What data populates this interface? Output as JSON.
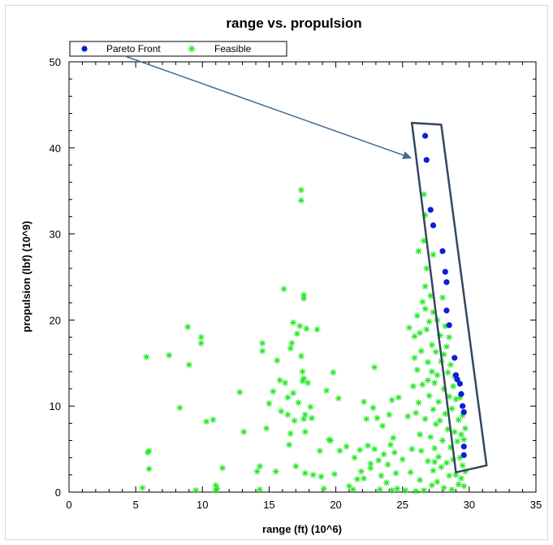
{
  "chart_data": {
    "type": "scatter",
    "title": "range vs. propulsion",
    "xlabel": "range (ft) (10^6)",
    "ylabel": "propulsion (lbf) (10^9)",
    "xlim": [
      0,
      35
    ],
    "ylim": [
      0,
      50
    ],
    "xticks": [
      "0",
      "5",
      "10",
      "15",
      "20",
      "25",
      "30",
      "35"
    ],
    "yticks": [
      "0",
      "10",
      "20",
      "30",
      "40",
      "50"
    ],
    "grid": false,
    "legend": {
      "placement": "top-left",
      "entries": [
        "Pareto Front",
        "Feasible"
      ]
    },
    "colors": {
      "pareto": "#0a1fd6",
      "feasible": "#22e622",
      "annotation": "#3f6b94",
      "box": "#34475e"
    },
    "series": [
      {
        "name": "Pareto Front",
        "marker": "circle",
        "points": [
          [
            26.7,
            41.4
          ],
          [
            26.8,
            38.6
          ],
          [
            27.1,
            32.8
          ],
          [
            27.3,
            31.0
          ],
          [
            28.0,
            28.0
          ],
          [
            28.2,
            25.6
          ],
          [
            28.3,
            24.4
          ],
          [
            28.3,
            21.1
          ],
          [
            28.5,
            19.4
          ],
          [
            28.9,
            15.6
          ],
          [
            29.0,
            13.6
          ],
          [
            29.1,
            13.1
          ],
          [
            29.3,
            12.6
          ],
          [
            29.4,
            11.4
          ],
          [
            29.5,
            10.0
          ],
          [
            29.6,
            9.3
          ],
          [
            29.6,
            5.3
          ],
          [
            29.6,
            4.3
          ]
        ]
      },
      {
        "name": "Feasible",
        "marker": "asterisk",
        "points": [
          [
            5.5,
            0.5
          ],
          [
            5.8,
            15.7
          ],
          [
            5.9,
            4.6
          ],
          [
            6.0,
            4.8
          ],
          [
            6.0,
            2.7
          ],
          [
            7.5,
            15.9
          ],
          [
            8.3,
            9.8
          ],
          [
            8.9,
            19.2
          ],
          [
            9.0,
            14.8
          ],
          [
            9.5,
            0.2
          ],
          [
            9.9,
            18.0
          ],
          [
            9.9,
            17.3
          ],
          [
            10.3,
            8.2
          ],
          [
            10.8,
            8.4
          ],
          [
            11.0,
            0.8
          ],
          [
            11.1,
            0.4
          ],
          [
            11.5,
            2.8
          ],
          [
            11.0,
            0.2
          ],
          [
            12.8,
            11.6
          ],
          [
            13.1,
            7.0
          ],
          [
            14.1,
            2.4
          ],
          [
            14.3,
            3.0
          ],
          [
            14.5,
            17.3
          ],
          [
            14.5,
            16.4
          ],
          [
            14.3,
            0.3
          ],
          [
            14.8,
            7.4
          ],
          [
            15.0,
            10.3
          ],
          [
            15.3,
            11.7
          ],
          [
            15.6,
            15.3
          ],
          [
            15.8,
            13.0
          ],
          [
            15.5,
            2.4
          ],
          [
            15.9,
            9.4
          ],
          [
            16.1,
            23.6
          ],
          [
            16.2,
            12.7
          ],
          [
            16.4,
            11.0
          ],
          [
            16.4,
            9.0
          ],
          [
            16.5,
            5.5
          ],
          [
            16.6,
            6.8
          ],
          [
            16.6,
            16.7
          ],
          [
            16.7,
            17.3
          ],
          [
            16.8,
            19.7
          ],
          [
            16.8,
            11.5
          ],
          [
            16.9,
            8.3
          ],
          [
            17.0,
            3.0
          ],
          [
            17.1,
            18.4
          ],
          [
            17.2,
            10.4
          ],
          [
            17.3,
            19.3
          ],
          [
            17.4,
            35.1
          ],
          [
            17.4,
            33.9
          ],
          [
            17.4,
            15.8
          ],
          [
            17.5,
            14.0
          ],
          [
            17.5,
            12.9
          ],
          [
            17.6,
            22.9
          ],
          [
            17.6,
            22.5
          ],
          [
            17.6,
            13.2
          ],
          [
            17.6,
            8.5
          ],
          [
            17.7,
            9.0
          ],
          [
            17.7,
            7.0
          ],
          [
            17.7,
            2.2
          ],
          [
            17.8,
            19.0
          ],
          [
            17.9,
            12.7
          ],
          [
            18.1,
            9.9
          ],
          [
            18.2,
            8.6
          ],
          [
            18.3,
            2.0
          ],
          [
            18.6,
            18.9
          ],
          [
            18.8,
            4.8
          ],
          [
            18.9,
            1.8
          ],
          [
            19.1,
            0.4
          ],
          [
            19.3,
            11.8
          ],
          [
            19.5,
            6.1
          ],
          [
            19.6,
            6.0
          ],
          [
            19.8,
            13.9
          ],
          [
            19.9,
            2.1
          ],
          [
            20.2,
            10.9
          ],
          [
            20.3,
            4.8
          ],
          [
            20.8,
            5.3
          ],
          [
            21.0,
            0.7
          ],
          [
            21.3,
            0.3
          ],
          [
            21.4,
            4.0
          ],
          [
            21.6,
            1.5
          ],
          [
            21.8,
            4.9
          ],
          [
            21.9,
            2.4
          ],
          [
            22.1,
            1.6
          ],
          [
            22.1,
            10.5
          ],
          [
            22.3,
            8.5
          ],
          [
            22.4,
            5.4
          ],
          [
            22.6,
            2.8
          ],
          [
            22.6,
            3.3
          ],
          [
            22.8,
            9.8
          ],
          [
            22.9,
            14.5
          ],
          [
            22.9,
            5.0
          ],
          [
            23.1,
            8.6
          ],
          [
            23.2,
            3.7
          ],
          [
            23.3,
            0.3
          ],
          [
            23.4,
            1.9
          ],
          [
            23.5,
            7.7
          ],
          [
            23.6,
            4.4
          ],
          [
            23.8,
            1.1
          ],
          [
            23.9,
            3.2
          ],
          [
            24.0,
            9.0
          ],
          [
            24.1,
            5.5
          ],
          [
            24.2,
            0.2
          ],
          [
            24.2,
            10.7
          ],
          [
            24.3,
            6.3
          ],
          [
            24.4,
            4.6
          ],
          [
            24.5,
            2.2
          ],
          [
            24.7,
            11.0
          ],
          [
            24.6,
            0.4
          ],
          [
            25.0,
            3.8
          ],
          [
            25.2,
            0.2
          ],
          [
            25.5,
            19.1
          ],
          [
            25.4,
            8.8
          ],
          [
            25.6,
            2.3
          ],
          [
            26.0,
            0.1
          ],
          [
            25.8,
            12.3
          ],
          [
            25.9,
            18.1
          ],
          [
            26.1,
            20.5
          ],
          [
            26.1,
            14.2
          ],
          [
            26.2,
            10.4
          ],
          [
            26.3,
            6.7
          ],
          [
            26.3,
            1.4
          ],
          [
            26.4,
            16.4
          ],
          [
            26.5,
            22.1
          ],
          [
            26.5,
            12.5
          ],
          [
            26.6,
            34.6
          ],
          [
            26.6,
            29.2
          ],
          [
            26.7,
            23.9
          ],
          [
            26.7,
            21.3
          ],
          [
            26.7,
            8.5
          ],
          [
            26.8,
            18.9
          ],
          [
            26.8,
            26.0
          ],
          [
            26.9,
            15.1
          ],
          [
            26.9,
            3.6
          ],
          [
            27.0,
            19.8
          ],
          [
            27.0,
            11.2
          ],
          [
            27.1,
            22.8
          ],
          [
            27.1,
            6.4
          ],
          [
            27.2,
            17.1
          ],
          [
            27.2,
            14.0
          ],
          [
            27.2,
            0.8
          ],
          [
            27.3,
            20.9
          ],
          [
            27.3,
            9.6
          ],
          [
            27.3,
            2.5
          ],
          [
            27.4,
            12.7
          ],
          [
            27.4,
            5.1
          ],
          [
            27.5,
            16.3
          ],
          [
            27.5,
            7.9
          ],
          [
            27.6,
            13.6
          ],
          [
            27.6,
            1.2
          ],
          [
            27.7,
            10.5
          ],
          [
            27.7,
            4.1
          ],
          [
            27.8,
            18.2
          ],
          [
            27.8,
            8.3
          ],
          [
            27.9,
            15.2
          ],
          [
            27.9,
            2.9
          ],
          [
            28.0,
            22.6
          ],
          [
            28.0,
            6.0
          ],
          [
            28.1,
            12.0
          ],
          [
            28.1,
            0.5
          ],
          [
            28.2,
            19.3
          ],
          [
            28.2,
            9.1
          ],
          [
            28.3,
            16.9
          ],
          [
            28.3,
            3.4
          ],
          [
            28.4,
            13.9
          ],
          [
            28.4,
            7.3
          ],
          [
            28.5,
            11.1
          ],
          [
            28.5,
            1.9
          ],
          [
            28.6,
            5.2
          ],
          [
            28.6,
            14.8
          ],
          [
            28.7,
            9.7
          ],
          [
            28.7,
            0.3
          ],
          [
            28.8,
            12.3
          ],
          [
            28.8,
            3.8
          ],
          [
            28.9,
            7.0
          ],
          [
            29.0,
            10.8
          ],
          [
            29.0,
            2.0
          ],
          [
            29.1,
            5.9
          ],
          [
            29.2,
            8.4
          ],
          [
            29.2,
            0.9
          ],
          [
            29.3,
            11.0
          ],
          [
            29.3,
            4.0
          ],
          [
            29.4,
            6.7
          ],
          [
            29.4,
            1.6
          ],
          [
            29.5,
            8.9
          ],
          [
            29.5,
            3.1
          ],
          [
            29.6,
            6.1
          ],
          [
            29.6,
            0.7
          ],
          [
            29.7,
            2.4
          ],
          [
            29.7,
            7.4
          ],
          [
            26.2,
            28.0
          ],
          [
            26.7,
            32.2
          ],
          [
            27.3,
            27.6
          ],
          [
            25.9,
            15.6
          ],
          [
            26.0,
            9.2
          ],
          [
            25.7,
            5.0
          ],
          [
            26.4,
            4.8
          ],
          [
            26.6,
            0.2
          ],
          [
            28.1,
            16.0
          ],
          [
            27.6,
            20.0
          ],
          [
            28.5,
            18.0
          ],
          [
            26.9,
            13.0
          ],
          [
            27.4,
            3.5
          ],
          [
            26.3,
            18.5
          ],
          [
            28.9,
            13.4
          ]
        ]
      }
    ]
  }
}
